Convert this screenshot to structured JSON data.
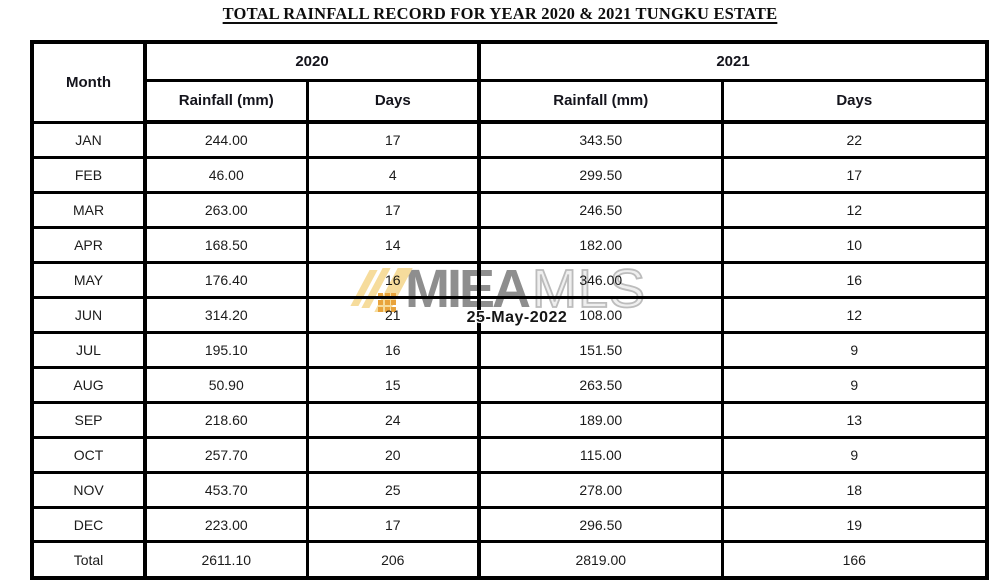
{
  "title": "TOTAL RAINFALL RECORD FOR YEAR 2020 & 2021 TUNGKU ESTATE",
  "table": {
    "header": {
      "month_label": "Month",
      "year_groups": [
        {
          "year": "2020",
          "columns": [
            "Rainfall (mm)",
            "Days"
          ]
        },
        {
          "year": "2021",
          "columns": [
            "Rainfall (mm)",
            "Days"
          ]
        }
      ]
    },
    "rows": [
      {
        "month": "JAN",
        "rain_2020": "244.00",
        "days_2020": "17",
        "rain_2021": "343.50",
        "days_2021": "22"
      },
      {
        "month": "FEB",
        "rain_2020": "46.00",
        "days_2020": "4",
        "rain_2021": "299.50",
        "days_2021": "17"
      },
      {
        "month": "MAR",
        "rain_2020": "263.00",
        "days_2020": "17",
        "rain_2021": "246.50",
        "days_2021": "12"
      },
      {
        "month": "APR",
        "rain_2020": "168.50",
        "days_2020": "14",
        "rain_2021": "182.00",
        "days_2021": "10"
      },
      {
        "month": "MAY",
        "rain_2020": "176.40",
        "days_2020": "16",
        "rain_2021": "346.00",
        "days_2021": "16"
      },
      {
        "month": "JUN",
        "rain_2020": "314.20",
        "days_2020": "21",
        "rain_2021": "108.00",
        "days_2021": "12"
      },
      {
        "month": "JUL",
        "rain_2020": "195.10",
        "days_2020": "16",
        "rain_2021": "151.50",
        "days_2021": "9"
      },
      {
        "month": "AUG",
        "rain_2020": "50.90",
        "days_2020": "15",
        "rain_2021": "263.50",
        "days_2021": "9"
      },
      {
        "month": "SEP",
        "rain_2020": "218.60",
        "days_2020": "24",
        "rain_2021": "189.00",
        "days_2021": "13"
      },
      {
        "month": "OCT",
        "rain_2020": "257.70",
        "days_2020": "20",
        "rain_2021": "115.00",
        "days_2021": "9"
      },
      {
        "month": "NOV",
        "rain_2020": "453.70",
        "days_2020": "25",
        "rain_2021": "278.00",
        "days_2021": "18"
      },
      {
        "month": "DEC",
        "rain_2020": "223.00",
        "days_2020": "17",
        "rain_2021": "296.50",
        "days_2021": "19"
      },
      {
        "month": "Total",
        "rain_2020": "2611.10",
        "days_2020": "206",
        "rain_2021": "2819.00",
        "days_2021": "166"
      }
    ]
  },
  "watermark": {
    "brand_bold": "MIEA",
    "brand_light": "MLS",
    "date_stamp": "25-May-2022"
  },
  "colors": {
    "border_black": "#000000",
    "body_text": "#1b1b1b",
    "watermark_gray": "#8e8e8e",
    "watermark_outline_gray": "#bcbcbc",
    "slash_yellow": "#f6dc9c",
    "grid_orange": "#e9a43c"
  }
}
